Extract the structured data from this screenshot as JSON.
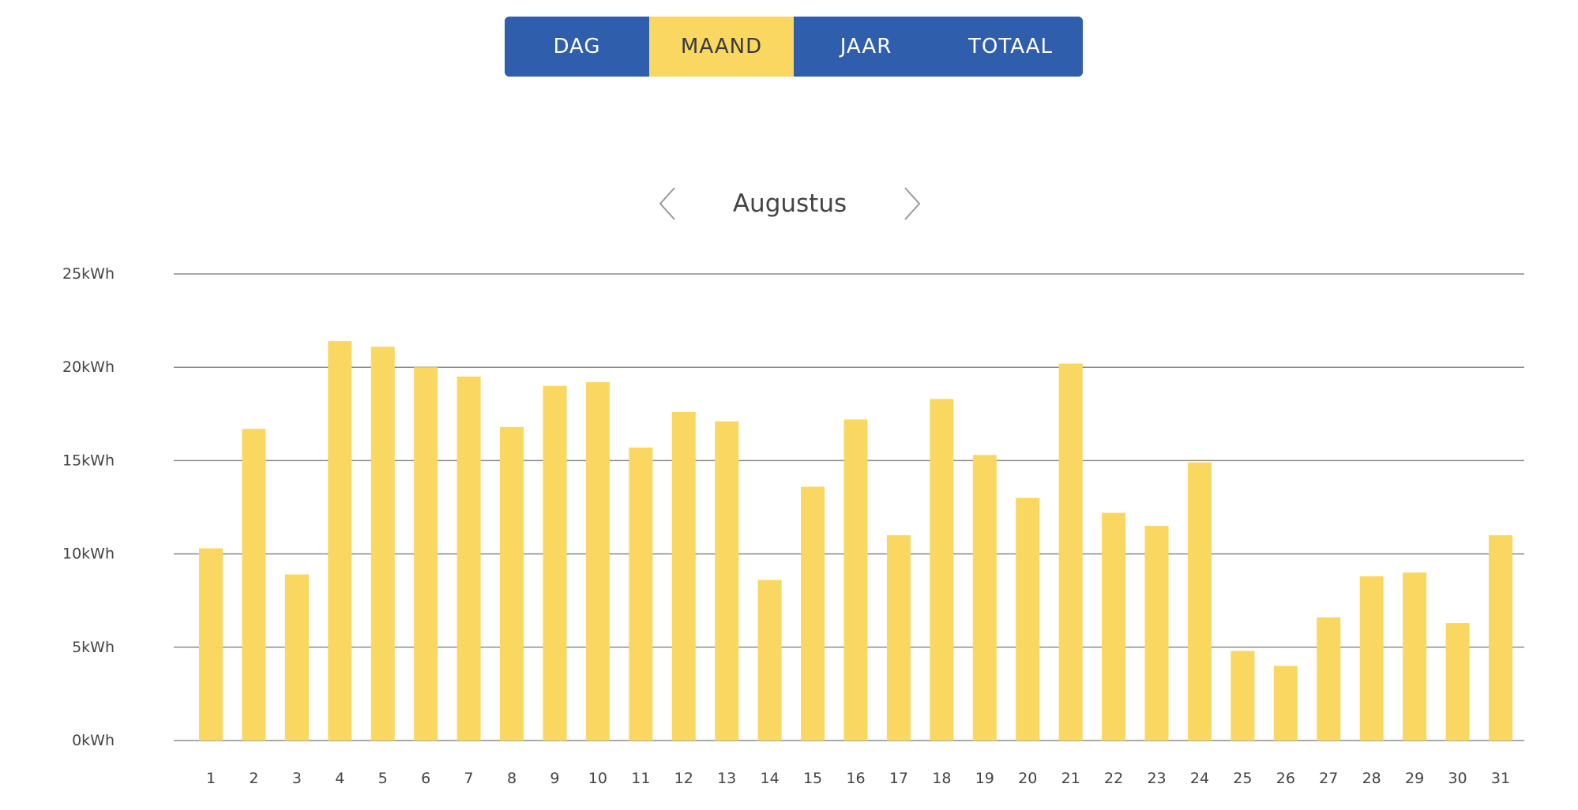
{
  "tabs": [
    {
      "label": "DAG",
      "active": false
    },
    {
      "label": "MAAND",
      "active": true
    },
    {
      "label": "JAAR",
      "active": false
    },
    {
      "label": "TOTAAL",
      "active": false
    }
  ],
  "period": {
    "label": "Augustus",
    "prev_icon": "chevron-left-icon",
    "next_icon": "chevron-right-icon"
  },
  "colors": {
    "tab_bg": "#2f5ead",
    "accent": "#f9d761",
    "grid": "#8c8c8c",
    "text": "#444444"
  },
  "chart_data": {
    "type": "bar",
    "title": "",
    "xlabel": "",
    "ylabel": "",
    "unit": "kWh",
    "ylim": [
      0,
      25
    ],
    "y_ticks": [
      {
        "value": 0,
        "label": "0kWh"
      },
      {
        "value": 5,
        "label": "5kWh"
      },
      {
        "value": 10,
        "label": "10kWh"
      },
      {
        "value": 15,
        "label": "15kWh"
      },
      {
        "value": 20,
        "label": "20kWh"
      },
      {
        "value": 25,
        "label": "25kWh"
      }
    ],
    "grid": true,
    "categories": [
      "1",
      "2",
      "3",
      "4",
      "5",
      "6",
      "7",
      "8",
      "9",
      "10",
      "11",
      "12",
      "13",
      "14",
      "15",
      "16",
      "17",
      "18",
      "19",
      "20",
      "21",
      "22",
      "23",
      "24",
      "25",
      "26",
      "27",
      "28",
      "29",
      "30",
      "31"
    ],
    "values": [
      10.3,
      16.7,
      8.9,
      21.4,
      21.1,
      20.0,
      19.5,
      16.8,
      19.0,
      19.2,
      15.7,
      17.6,
      17.1,
      8.6,
      13.6,
      17.2,
      11.0,
      18.3,
      15.3,
      13.0,
      20.2,
      12.2,
      11.5,
      14.9,
      4.8,
      4.0,
      6.6,
      8.8,
      9.0,
      6.3,
      11.0
    ]
  }
}
